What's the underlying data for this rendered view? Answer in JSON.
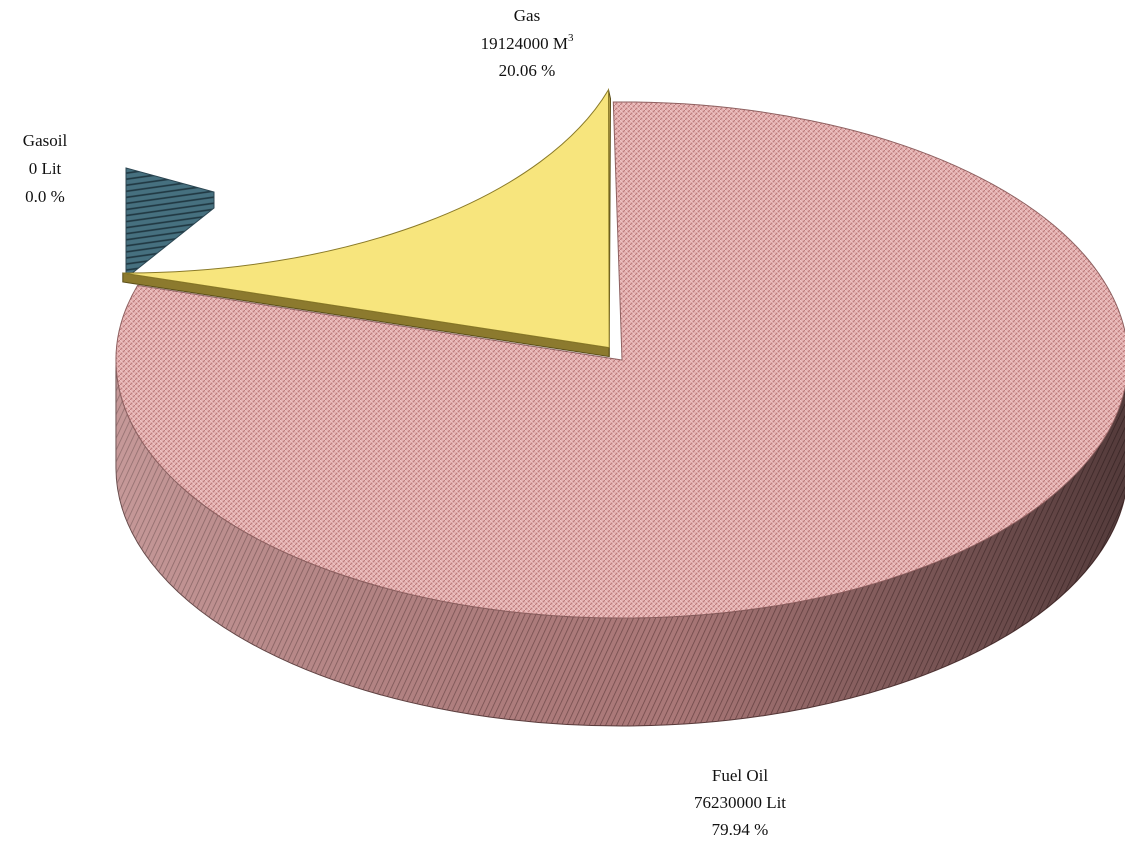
{
  "chart_data": {
    "type": "pie",
    "style": "3d-exploded",
    "legend": "none",
    "slices": [
      {
        "name": "Gas",
        "amount": "19124000",
        "unit": "M",
        "unit_superscript": "3",
        "percent_label": "20.06 %",
        "value": 20.06,
        "color": "#f5e37a"
      },
      {
        "name": "Gasoil",
        "amount": "0",
        "unit": "Lit",
        "percent_label": "0.0 %",
        "value": 0.0,
        "color": "#3f6170"
      },
      {
        "name": "Fuel Oil",
        "amount": "76230000",
        "unit": "Lit",
        "percent_label": "79.94 %",
        "value": 79.94,
        "color": "#e2a9a9"
      }
    ]
  }
}
